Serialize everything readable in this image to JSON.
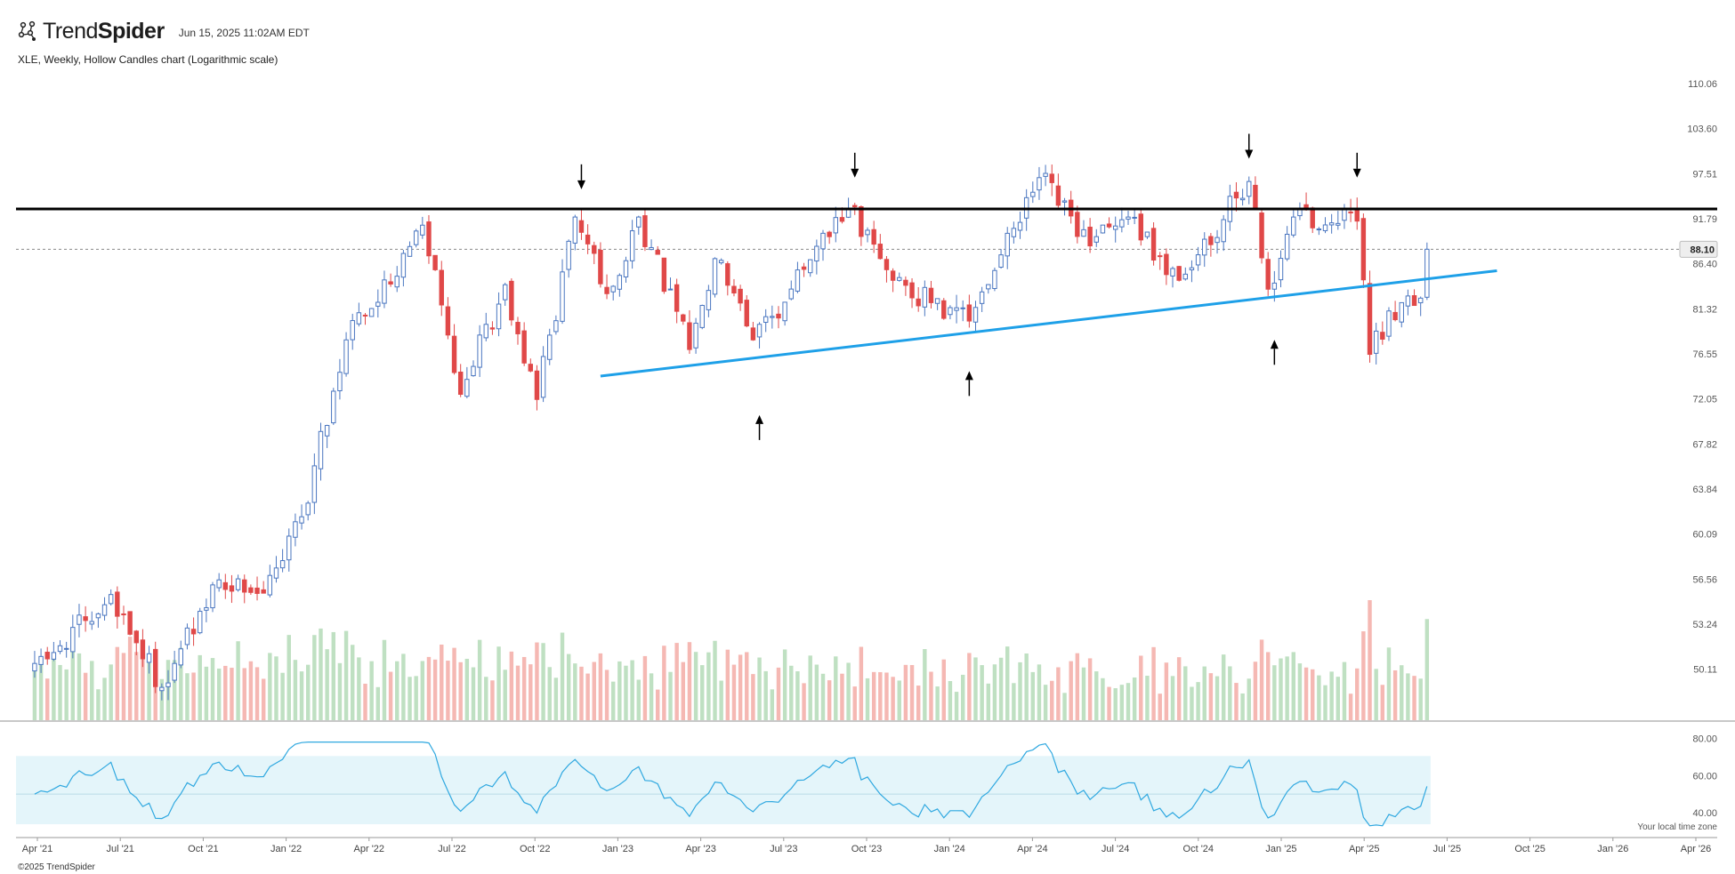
{
  "header": {
    "brand_regular": "Trend",
    "brand_bold": "Spider",
    "timestamp": "Jun 15, 2025 11:02AM EDT",
    "subtitle": "XLE, Weekly, Hollow Candles chart (Logarithmic scale)"
  },
  "footer": {
    "copyright": "©2025 TrendSpider",
    "timezone_note": "Your local time zone"
  },
  "colors": {
    "up": "#4a76c0",
    "down": "#e04848",
    "resistance": "#000000",
    "support": "#1ea0e8",
    "vol_up": "#bfe0c2",
    "vol_down": "#f5b8b3",
    "rsi_line": "#2fa8e0",
    "rsi_band": "#e4f5fa"
  },
  "chart_data": [
    {
      "type": "candlestick",
      "title": "XLE, Weekly, Hollow Candles chart (Logarithmic scale)",
      "scale": "log",
      "ylim": [
        48.5,
        113
      ],
      "y_ticks": [
        "110.06",
        "103.60",
        "97.51",
        "91.79",
        "86.40",
        "81.32",
        "76.55",
        "72.05",
        "67.82",
        "63.84",
        "60.09",
        "56.56",
        "53.24",
        "50.11"
      ],
      "x_ticks": [
        "Apr '21",
        "Jul '21",
        "Oct '21",
        "Jan '22",
        "Apr '22",
        "Jul '22",
        "Oct '22",
        "Jan '23",
        "Apr '23",
        "Jul '23",
        "Oct '23",
        "Jan '24",
        "Apr '24",
        "Jul '24",
        "Oct '24",
        "Jan '25",
        "Apr '25",
        "Jul '25",
        "Oct '25",
        "Jan '26",
        "Apr '26"
      ],
      "last_price": "88.10",
      "anchors": [
        [
          "2021-03-29",
          50.5
        ],
        [
          "2021-05-24",
          53.5
        ],
        [
          "2021-06-21",
          55.4
        ],
        [
          "2021-08-16",
          48.9
        ],
        [
          "2021-10-18",
          56.5
        ],
        [
          "2021-12-06",
          55.5
        ],
        [
          "2022-01-17",
          61.5
        ],
        [
          "2022-03-07",
          78.0
        ],
        [
          "2022-05-30",
          91.0
        ],
        [
          "2022-07-11",
          72.5
        ],
        [
          "2022-08-29",
          84.0
        ],
        [
          "2022-10-03",
          72.0
        ],
        [
          "2022-11-14",
          92.0
        ],
        [
          "2022-12-19",
          83.0
        ],
        [
          "2023-01-23",
          92.0
        ],
        [
          "2023-03-20",
          77.0
        ],
        [
          "2023-04-17",
          87.0
        ],
        [
          "2023-05-29",
          78.0
        ],
        [
          "2023-09-11",
          93.0
        ],
        [
          "2023-10-30",
          84.5
        ],
        [
          "2023-12-11",
          82.0
        ],
        [
          "2024-01-22",
          80.0
        ],
        [
          "2024-04-08",
          97.0
        ],
        [
          "2024-06-03",
          88.5
        ],
        [
          "2024-07-15",
          92.0
        ],
        [
          "2024-09-09",
          84.5
        ],
        [
          "2024-11-25",
          96.5
        ],
        [
          "2024-12-16",
          83.5
        ],
        [
          "2025-01-13",
          92.0
        ],
        [
          "2025-03-24",
          91.5
        ],
        [
          "2025-04-07",
          76.5
        ],
        [
          "2025-05-12",
          82.0
        ],
        [
          "2025-06-02",
          82.5
        ],
        [
          "2025-06-09",
          88.1
        ]
      ],
      "resistance_level": 93.0,
      "support_trendline": [
        [
          "2022-12-12",
          74.3
        ],
        [
          "2025-08-25",
          85.6
        ]
      ],
      "arrows_down": [
        [
          "2022-11-21",
          95.5
        ],
        [
          "2023-09-18",
          97.0
        ],
        [
          "2024-11-25",
          99.5
        ],
        [
          "2025-03-24",
          97.0
        ]
      ],
      "arrows_up": [
        [
          "2023-06-05",
          70.5
        ],
        [
          "2024-01-22",
          74.8
        ],
        [
          "2024-12-23",
          78.0
        ]
      ]
    },
    {
      "type": "bar",
      "title": "Volume"
    },
    {
      "type": "line",
      "title": "RSI",
      "ylim": [
        30,
        85
      ],
      "y_ticks": [
        "80.00",
        "60.00",
        "40.00"
      ],
      "band": [
        33.8,
        70.5
      ]
    }
  ]
}
